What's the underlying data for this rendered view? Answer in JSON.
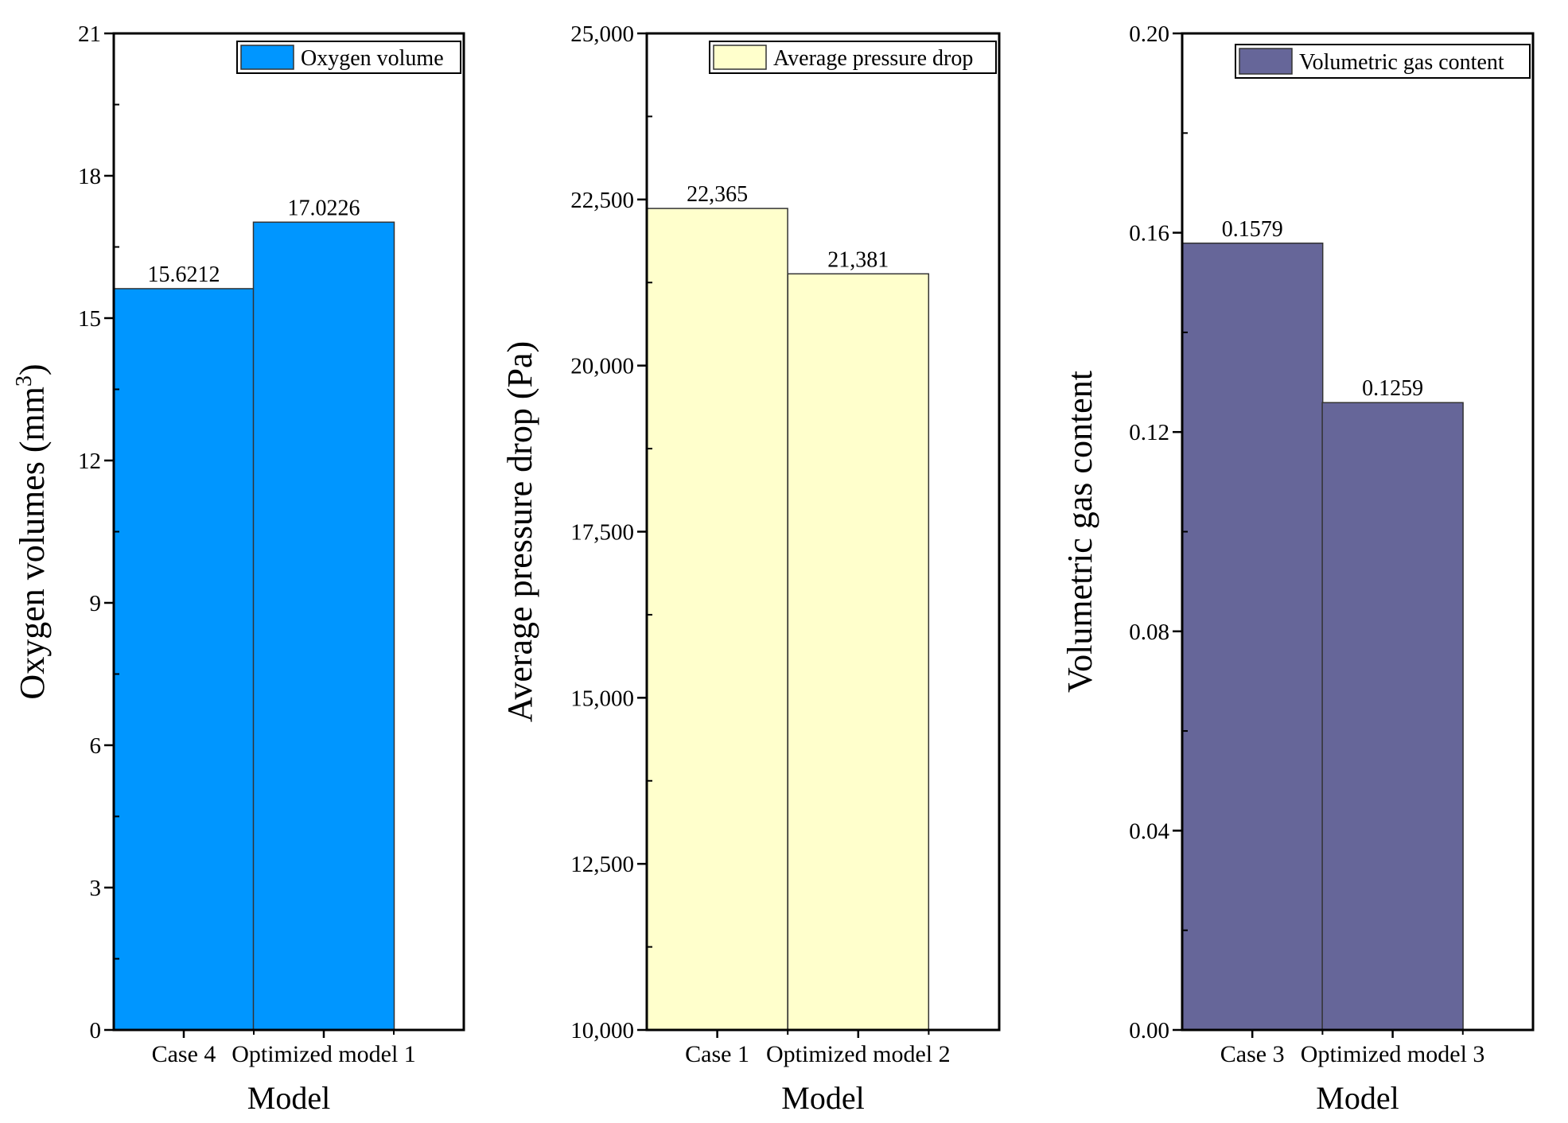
{
  "chart_data": [
    {
      "type": "bar",
      "title": "",
      "categories": [
        "Case 4",
        "Optimized model 1"
      ],
      "values": [
        15.6212,
        17.0226
      ],
      "value_labels": [
        "15.6212",
        "17.0226"
      ],
      "series_name": "Oxygen volume",
      "color": "#0096FF",
      "xlabel": "Model",
      "ylabel": "Oxygen volumes (mm",
      "ylabel_sup": "3",
      "ylabel_end": ")",
      "ylim": [
        0,
        21
      ],
      "yticks": [
        0,
        3,
        6,
        9,
        12,
        15,
        18,
        21
      ],
      "ytick_labels": [
        "0",
        "3",
        "6",
        "9",
        "12",
        "15",
        "18",
        "21"
      ],
      "legend": "top-right",
      "grid": false
    },
    {
      "type": "bar",
      "title": "",
      "categories": [
        "Case 1",
        "Optimized model 2"
      ],
      "values": [
        22365,
        21381
      ],
      "value_labels": [
        "22,365",
        "21,381"
      ],
      "series_name": "Average pressure drop",
      "color": "#FFFFCC",
      "xlabel": "Model",
      "ylabel": "Average pressure drop (Pa)",
      "ylim": [
        10000,
        25000
      ],
      "yticks": [
        10000,
        12500,
        15000,
        17500,
        20000,
        22500,
        25000
      ],
      "ytick_labels": [
        "10,000",
        "12,500",
        "15,000",
        "17,500",
        "20,000",
        "22,500",
        "25,000"
      ],
      "legend": "top-right",
      "grid": false
    },
    {
      "type": "bar",
      "title": "",
      "categories": [
        "Case 3",
        "Optimized model 3"
      ],
      "values": [
        0.1579,
        0.1259
      ],
      "value_labels": [
        "0.1579",
        "0.1259"
      ],
      "series_name": "Volumetric gas content",
      "color": "#666699",
      "xlabel": "Model",
      "ylabel": "Volumetric gas content",
      "ylim": [
        0,
        0.2
      ],
      "yticks": [
        0,
        0.04,
        0.08,
        0.12,
        0.16,
        0.2
      ],
      "ytick_labels": [
        "0.00",
        "0.04",
        "0.08",
        "0.12",
        "0.16",
        "0.20"
      ],
      "legend": "top-right",
      "grid": false
    }
  ]
}
